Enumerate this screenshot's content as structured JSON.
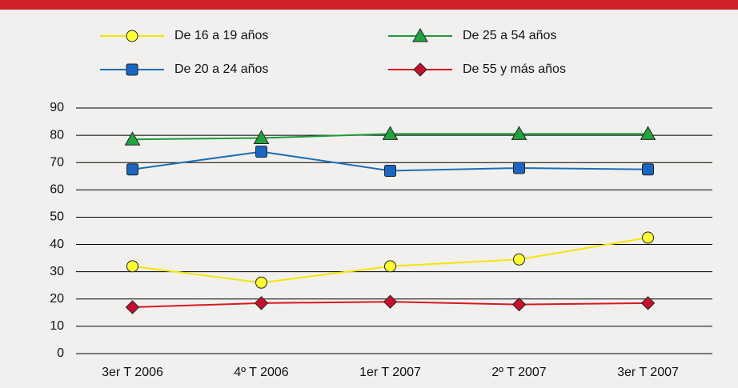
{
  "chart_data": {
    "type": "line",
    "categories": [
      "3er T 2006",
      "4º T 2006",
      "1er T 2007",
      "2º T 2007",
      "3er T 2007"
    ],
    "series": [
      {
        "name": "De 16 a 19 años",
        "color": "#f2e600",
        "marker": "circle",
        "marker_color": "#ffff33",
        "values": [
          32,
          26,
          32,
          34.5,
          42.5
        ]
      },
      {
        "name": "De 25 a 54 años",
        "color": "#1e9a3c",
        "marker": "triangle",
        "marker_color": "#22a33f",
        "values": [
          78.5,
          79,
          80.5,
          80.5,
          80.5
        ]
      },
      {
        "name": "De 20 a 24 años",
        "color": "#1a6fb8",
        "marker": "square",
        "marker_color": "#1a66c0",
        "values": [
          67.5,
          74,
          67,
          68,
          67.5
        ]
      },
      {
        "name": "De 55 y más años",
        "color": "#d7191f",
        "marker": "diamond",
        "marker_color": "#c8102e",
        "values": [
          17,
          18.5,
          19,
          18,
          18.5
        ]
      }
    ],
    "ylim": [
      0,
      90
    ],
    "yticks": [
      0,
      10,
      20,
      30,
      40,
      50,
      60,
      70,
      80,
      90
    ],
    "grid": true
  }
}
